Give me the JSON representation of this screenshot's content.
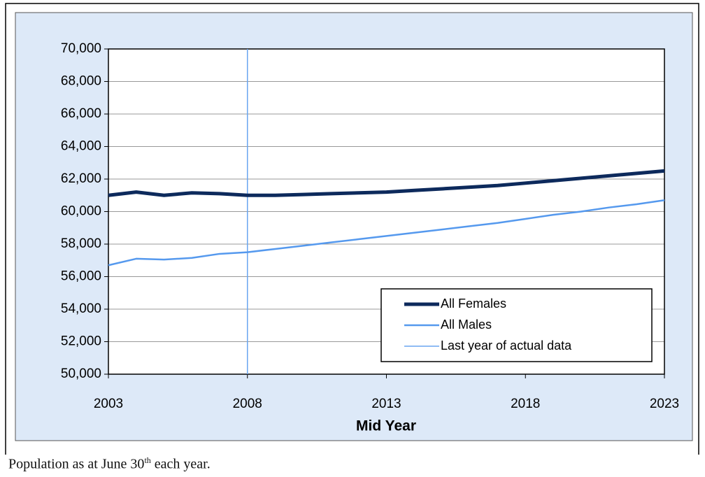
{
  "chart_data": {
    "type": "line",
    "x_label": "Mid Year",
    "x": [
      2003,
      2004,
      2005,
      2006,
      2007,
      2008,
      2009,
      2010,
      2011,
      2012,
      2013,
      2014,
      2015,
      2016,
      2017,
      2018,
      2019,
      2020,
      2021,
      2022,
      2023
    ],
    "series": [
      {
        "name": "All Females",
        "color": "#0d2a5c",
        "values": [
          61000,
          61200,
          61000,
          61150,
          61100,
          61000,
          61000,
          61050,
          61100,
          61150,
          61200,
          61300,
          61400,
          61500,
          61600,
          61750,
          61900,
          62050,
          62200,
          62350,
          62500
        ]
      },
      {
        "name": "All Males",
        "color": "#5599ee",
        "values": [
          56700,
          57100,
          57050,
          57150,
          57400,
          57500,
          57700,
          57900,
          58100,
          58300,
          58500,
          58700,
          58900,
          59100,
          59300,
          59550,
          59800,
          60000,
          60250,
          60450,
          60700
        ]
      }
    ],
    "reference_line": {
      "name": "Last year of actual data",
      "x": 2008,
      "color": "#6aa6f0"
    },
    "xlim": [
      2003,
      2023
    ],
    "xticks": [
      2003,
      2008,
      2013,
      2018,
      2023
    ],
    "ylim": [
      50000,
      70000
    ],
    "yticks": [
      {
        "value": 50000,
        "label": "50,000"
      },
      {
        "value": 52000,
        "label": "52,000"
      },
      {
        "value": 54000,
        "label": "54,000"
      },
      {
        "value": 56000,
        "label": "56,000"
      },
      {
        "value": 58000,
        "label": "58,000"
      },
      {
        "value": 60000,
        "label": "60,000"
      },
      {
        "value": 62000,
        "label": "62,000"
      },
      {
        "value": 64000,
        "label": "64,000"
      },
      {
        "value": 66000,
        "label": "66,000"
      },
      {
        "value": 68000,
        "label": "68,000"
      },
      {
        "value": 70000,
        "label": "70,000"
      }
    ],
    "grid": true,
    "legend_position": "lower-right"
  },
  "caption": [
    "Population as at June 30",
    "th",
    " each year."
  ]
}
